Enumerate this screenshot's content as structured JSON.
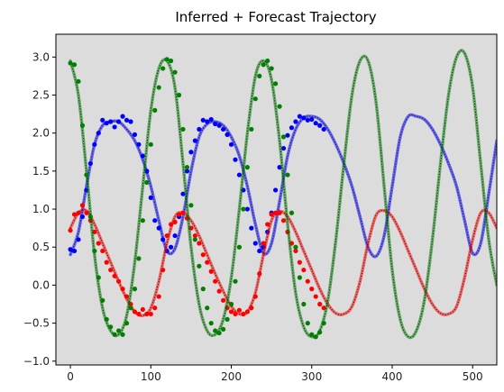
{
  "chart_data": {
    "type": "line",
    "title": "Inferred + Forecast Trajectory",
    "xlabel": "",
    "ylabel": "",
    "xlim": [
      -18,
      530
    ],
    "ylim": [
      -1.05,
      3.3
    ],
    "x_ticks": [
      0,
      100,
      200,
      300,
      400,
      500
    ],
    "y_ticks": [
      -1.0,
      -0.5,
      0.0,
      0.5,
      1.0,
      1.5,
      2.0,
      2.5,
      3.0
    ],
    "x_tick_labels": [
      "0",
      "100",
      "200",
      "300",
      "400",
      "500"
    ],
    "y_tick_labels": [
      "−1.0",
      "−0.5",
      "0.0",
      "0.5",
      "1.0",
      "1.5",
      "2.0",
      "2.5",
      "3.0"
    ],
    "background_color": "#dcdcdc",
    "grid": false,
    "series": [
      {
        "color": "#0000ff",
        "trajectory": {
          "x": [
            0,
            10,
            20,
            30,
            40,
            50,
            60,
            70,
            80,
            90,
            100,
            110,
            120,
            130,
            140,
            150,
            160,
            170,
            180,
            190,
            200,
            210,
            220,
            230,
            240,
            250,
            260,
            270,
            280,
            290,
            300,
            310,
            320,
            330,
            340,
            350,
            360,
            370,
            380,
            390,
            400,
            410,
            420,
            430,
            440,
            450,
            460,
            470,
            480,
            490,
            500,
            510,
            520,
            530
          ],
          "y": [
            0.4,
            0.7,
            1.3,
            1.85,
            2.1,
            2.15,
            2.15,
            2.05,
            1.9,
            1.65,
            1.3,
            0.85,
            0.45,
            0.48,
            0.9,
            1.5,
            1.95,
            2.12,
            2.15,
            2.1,
            1.95,
            1.7,
            1.3,
            0.8,
            0.42,
            0.55,
            1.1,
            1.7,
            2.05,
            2.2,
            2.22,
            2.18,
            2.05,
            1.85,
            1.6,
            1.3,
            0.9,
            0.5,
            0.38,
            0.65,
            1.3,
            1.95,
            2.22,
            2.22,
            2.18,
            2.05,
            1.85,
            1.6,
            1.3,
            0.85,
            0.42,
            0.55,
            1.2,
            1.9
          ]
        },
        "observations": {
          "x": [
            0,
            5,
            10,
            15,
            20,
            25,
            30,
            35,
            40,
            45,
            50,
            55,
            60,
            65,
            70,
            75,
            80,
            85,
            90,
            95,
            100,
            105,
            110,
            115,
            120,
            125,
            130,
            135,
            140,
            145,
            150,
            155,
            160,
            165,
            170,
            175,
            180,
            185,
            190,
            195,
            200,
            205,
            210,
            215,
            220,
            225,
            230,
            235,
            240,
            245,
            250,
            255,
            260,
            265,
            270,
            275,
            280,
            285,
            290,
            295,
            300,
            305,
            310,
            315
          ],
          "y": [
            0.47,
            0.45,
            0.6,
            0.9,
            1.25,
            1.6,
            1.85,
            2.0,
            2.17,
            2.13,
            2.15,
            2.08,
            2.15,
            2.22,
            2.17,
            2.15,
            1.98,
            1.85,
            1.7,
            1.5,
            1.15,
            0.85,
            0.75,
            0.6,
            0.45,
            0.5,
            0.65,
            0.9,
            1.2,
            1.5,
            1.75,
            1.9,
            2.05,
            2.17,
            2.15,
            2.18,
            2.12,
            2.1,
            2.05,
            1.98,
            1.85,
            1.65,
            1.45,
            1.25,
            1.0,
            0.75,
            0.55,
            0.45,
            0.5,
            0.7,
            0.95,
            1.25,
            1.55,
            1.8,
            1.97,
            2.07,
            2.15,
            2.22,
            2.2,
            2.17,
            2.18,
            2.13,
            2.1,
            2.05
          ]
        }
      },
      {
        "color": "#ff0000",
        "trajectory": {
          "x": [
            0,
            10,
            20,
            30,
            40,
            50,
            60,
            70,
            80,
            90,
            100,
            110,
            120,
            130,
            140,
            150,
            160,
            170,
            180,
            190,
            200,
            210,
            220,
            230,
            240,
            250,
            260,
            270,
            280,
            290,
            300,
            310,
            320,
            330,
            340,
            350,
            360,
            370,
            380,
            390,
            400,
            410,
            420,
            430,
            440,
            450,
            460,
            470,
            480,
            490,
            500,
            510,
            520,
            530
          ],
          "y": [
            0.75,
            0.95,
            0.98,
            0.8,
            0.55,
            0.3,
            0.05,
            -0.18,
            -0.35,
            -0.4,
            -0.3,
            0.05,
            0.55,
            0.9,
            0.95,
            0.85,
            0.65,
            0.4,
            0.15,
            -0.08,
            -0.28,
            -0.38,
            -0.35,
            -0.1,
            0.4,
            0.85,
            0.97,
            0.9,
            0.7,
            0.45,
            0.2,
            -0.05,
            -0.25,
            -0.37,
            -0.38,
            -0.28,
            0.05,
            0.55,
            0.92,
            0.98,
            0.9,
            0.7,
            0.45,
            0.2,
            -0.05,
            -0.25,
            -0.37,
            -0.38,
            -0.28,
            0.1,
            0.6,
            0.95,
            0.95,
            0.75
          ]
        },
        "observations": {
          "x": [
            0,
            5,
            10,
            15,
            20,
            25,
            30,
            35,
            40,
            45,
            50,
            55,
            60,
            65,
            70,
            75,
            80,
            85,
            90,
            95,
            100,
            105,
            110,
            115,
            120,
            125,
            130,
            135,
            140,
            145,
            150,
            155,
            160,
            165,
            170,
            175,
            180,
            185,
            190,
            195,
            200,
            205,
            210,
            215,
            220,
            225,
            230,
            235,
            240,
            245,
            250,
            255,
            260,
            265,
            270,
            275,
            280,
            285,
            290,
            295,
            300,
            305,
            310,
            315
          ],
          "y": [
            0.72,
            0.93,
            0.95,
            1.05,
            0.95,
            0.85,
            0.7,
            0.55,
            0.45,
            0.3,
            0.2,
            0.12,
            0.05,
            -0.05,
            -0.15,
            -0.25,
            -0.35,
            -0.38,
            -0.32,
            -0.38,
            -0.38,
            -0.3,
            -0.15,
            0.2,
            0.65,
            0.8,
            0.83,
            0.93,
            0.95,
            0.88,
            0.75,
            0.65,
            0.55,
            0.4,
            0.3,
            0.18,
            0.05,
            -0.08,
            -0.2,
            -0.3,
            -0.35,
            -0.38,
            -0.33,
            -0.38,
            -0.35,
            -0.3,
            -0.15,
            0.15,
            0.55,
            0.8,
            0.93,
            0.95,
            0.95,
            0.85,
            0.7,
            0.55,
            0.45,
            0.3,
            0.2,
            0.05,
            -0.05,
            -0.15,
            -0.25,
            -0.3
          ]
        }
      },
      {
        "color": "#008000",
        "trajectory": {
          "x": [
            0,
            10,
            20,
            30,
            40,
            50,
            60,
            70,
            80,
            90,
            100,
            110,
            120,
            130,
            140,
            150,
            160,
            170,
            180,
            190,
            200,
            210,
            220,
            230,
            240,
            250,
            260,
            270,
            280,
            290,
            300,
            310,
            320,
            330,
            340,
            350,
            360,
            370,
            380,
            390,
            400,
            410,
            420,
            430,
            440,
            450,
            460,
            470,
            480,
            490,
            500,
            510,
            520,
            530
          ],
          "y": [
            2.95,
            2.5,
            1.5,
            0.4,
            -0.3,
            -0.6,
            -0.65,
            -0.4,
            0.3,
            1.3,
            2.3,
            2.85,
            2.95,
            2.6,
            1.6,
            0.5,
            -0.25,
            -0.6,
            -0.65,
            -0.45,
            0.1,
            1.0,
            2.0,
            2.75,
            2.95,
            2.7,
            1.9,
            0.8,
            -0.1,
            -0.55,
            -0.68,
            -0.6,
            -0.2,
            0.6,
            1.6,
            2.5,
            2.95,
            2.95,
            2.4,
            1.3,
            0.2,
            -0.45,
            -0.68,
            -0.6,
            -0.2,
            0.6,
            1.6,
            2.5,
            3.0,
            3.05,
            2.6,
            1.6,
            0.6,
            0.0
          ]
        },
        "observations": {
          "x": [
            0,
            5,
            10,
            15,
            20,
            25,
            30,
            35,
            40,
            45,
            50,
            55,
            60,
            65,
            70,
            75,
            80,
            85,
            90,
            95,
            100,
            105,
            110,
            115,
            120,
            125,
            130,
            135,
            140,
            145,
            150,
            155,
            160,
            165,
            170,
            175,
            180,
            185,
            190,
            195,
            200,
            205,
            210,
            215,
            220,
            225,
            230,
            235,
            240,
            245,
            250,
            255,
            260,
            265,
            270,
            275,
            280,
            285,
            290,
            295,
            300,
            305,
            310,
            315
          ],
          "y": [
            2.92,
            2.9,
            2.68,
            2.1,
            1.45,
            0.9,
            0.45,
            0.1,
            -0.2,
            -0.45,
            -0.55,
            -0.65,
            -0.6,
            -0.65,
            -0.5,
            -0.3,
            -0.05,
            0.35,
            0.85,
            1.35,
            1.85,
            2.3,
            2.6,
            2.85,
            2.97,
            2.95,
            2.8,
            2.5,
            2.05,
            1.55,
            1.05,
            0.6,
            0.25,
            -0.05,
            -0.3,
            -0.5,
            -0.6,
            -0.63,
            -0.58,
            -0.45,
            -0.25,
            0.05,
            0.5,
            1.0,
            1.55,
            2.05,
            2.45,
            2.75,
            2.9,
            2.95,
            2.85,
            2.65,
            2.35,
            1.95,
            1.45,
            0.95,
            0.5,
            0.1,
            -0.25,
            -0.5,
            -0.65,
            -0.68,
            -0.62,
            -0.5
          ]
        }
      }
    ]
  }
}
